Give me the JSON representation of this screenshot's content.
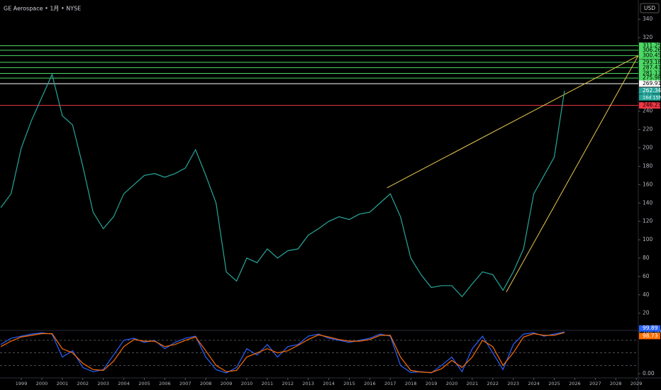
{
  "chart_data": [
    {
      "type": "line",
      "title": "GE Aerospace • 1月 • NYSE",
      "currency": "USD",
      "countdown": "16d 15h",
      "x": [
        1998,
        1998.5,
        1999,
        1999.5,
        2000,
        2000.5,
        2001,
        2001.5,
        2002,
        2002.5,
        2003,
        2003.5,
        2004,
        2004.5,
        2005,
        2005.5,
        2006,
        2006.5,
        2007,
        2007.5,
        2008,
        2008.5,
        2009,
        2009.5,
        2010,
        2010.5,
        2011,
        2011.5,
        2012,
        2012.5,
        2013,
        2013.5,
        2014,
        2014.5,
        2015,
        2015.5,
        2016,
        2016.5,
        2017,
        2017.5,
        2018,
        2018.5,
        2019,
        2019.5,
        2020,
        2020.5,
        2021,
        2021.5,
        2022,
        2022.5,
        2023,
        2023.5,
        2024,
        2024.5,
        2025,
        2025.5
      ],
      "series": [
        {
          "color": "#26a69a",
          "values": [
            135,
            150,
            200,
            230,
            255,
            280,
            235,
            225,
            180,
            130,
            112,
            125,
            150,
            160,
            170,
            172,
            168,
            172,
            178,
            198,
            170,
            140,
            65,
            55,
            80,
            75,
            90,
            80,
            88,
            90,
            105,
            112,
            120,
            125,
            122,
            128,
            130,
            140,
            150,
            125,
            80,
            62,
            48,
            50,
            50,
            38,
            52,
            65,
            62,
            45,
            65,
            90,
            150,
            170,
            190,
            262.34
          ]
        }
      ],
      "levels": [
        {
          "value": 311.25,
          "color": "#4cd964"
        },
        {
          "value": 306.26,
          "color": "#4cd964"
        },
        {
          "value": 300.45,
          "color": "#4cd964"
        },
        {
          "value": 293.18,
          "color": "#4cd964"
        },
        {
          "value": 287.41,
          "color": "#4cd964"
        },
        {
          "value": 281.11,
          "color": "#4cd964"
        },
        {
          "value": 275.98,
          "color": "#4cd964"
        },
        {
          "value": 269.91,
          "color": "#ffffff"
        },
        {
          "value": 246.23,
          "color": "#f23645"
        }
      ],
      "trendlines": [
        {
          "color": "#e6c84f",
          "x": [
            2016.84,
            2029.1
          ],
          "values": [
            156.5,
            300.45
          ]
        },
        {
          "color": "#e6c84f",
          "x": [
            2022.66,
            2029.1
          ],
          "values": [
            43,
            300.45
          ]
        }
      ],
      "xlim": [
        1997.96,
        2029.1
      ],
      "ylim": [
        2,
        361
      ],
      "xticks": [
        1999,
        2000,
        2001,
        2002,
        2003,
        2004,
        2005,
        2006,
        2007,
        2008,
        2009,
        2010,
        2011,
        2012,
        2013,
        2014,
        2015,
        2016,
        2017,
        2018,
        2019,
        2020,
        2021,
        2022,
        2023,
        2024,
        2025,
        2026,
        2027,
        2028,
        2029
      ],
      "yticks": [
        20,
        40,
        60,
        80,
        100,
        120,
        140,
        160,
        180,
        200,
        220,
        240,
        260,
        280,
        300,
        320,
        340
      ]
    },
    {
      "type": "line",
      "x": [
        1998,
        1998.5,
        1999,
        1999.5,
        2000,
        2000.5,
        2001,
        2001.5,
        2002,
        2002.5,
        2003,
        2003.5,
        2004,
        2004.5,
        2005,
        2005.5,
        2006,
        2006.5,
        2007,
        2007.5,
        2008,
        2008.5,
        2009,
        2009.5,
        2010,
        2010.5,
        2011,
        2011.5,
        2012,
        2012.5,
        2013,
        2013.5,
        2014,
        2014.5,
        2015,
        2015.5,
        2016,
        2016.5,
        2017,
        2017.5,
        2018,
        2018.5,
        2019,
        2019.5,
        2020,
        2020.5,
        2021,
        2021.5,
        2022,
        2022.5,
        2023,
        2023.5,
        2024,
        2024.5,
        2025,
        2025.5
      ],
      "series": [
        {
          "color": "#2962ff",
          "values": [
            70,
            85,
            90,
            95,
            98,
            95,
            40,
            55,
            15,
            5,
            10,
            45,
            80,
            85,
            75,
            80,
            60,
            75,
            85,
            90,
            40,
            10,
            2,
            15,
            60,
            45,
            70,
            40,
            65,
            70,
            90,
            95,
            85,
            80,
            75,
            80,
            85,
            95,
            90,
            20,
            3,
            5,
            2,
            20,
            40,
            5,
            60,
            90,
            50,
            10,
            70,
            95,
            98,
            90,
            95,
            99.89
          ]
        },
        {
          "color": "#ff6d00",
          "values": [
            65,
            78,
            88,
            92,
            96,
            96,
            60,
            50,
            25,
            10,
            8,
            30,
            65,
            82,
            78,
            78,
            65,
            70,
            80,
            88,
            55,
            20,
            5,
            8,
            40,
            50,
            60,
            50,
            55,
            68,
            82,
            93,
            88,
            82,
            78,
            78,
            82,
            92,
            92,
            40,
            8,
            4,
            3,
            12,
            32,
            15,
            40,
            80,
            65,
            20,
            50,
            88,
            96,
            92,
            92,
            98.73
          ]
        }
      ],
      "bands": [
        80,
        50,
        20
      ],
      "xlim": [
        1997.96,
        2029.1
      ],
      "ylim": [
        -10,
        102
      ],
      "yticks": [
        {
          "value": 100,
          "label": "100.00"
        },
        {
          "value": 0,
          "label": "0.00"
        }
      ]
    }
  ]
}
